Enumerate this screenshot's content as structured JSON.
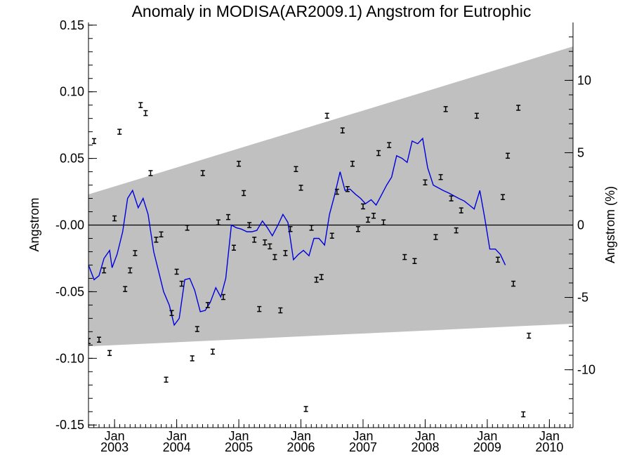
{
  "chart_data": {
    "type": "scatter",
    "title": "Anomaly in MODISA(AR2009.1) Angstrom for Eutrophic",
    "ylabel": "Angstrom",
    "y2label": "Angstrom (%)",
    "xlim": [
      2002.58,
      2010.38
    ],
    "ylim": [
      -0.152,
      0.152
    ],
    "y2lim": [
      -14.0,
      14.0
    ],
    "grid": false,
    "legend": "none",
    "colors": {
      "band": "#c0c0c0",
      "line": "#0000dd",
      "points": "#000000",
      "zero": "#000000"
    },
    "yticks": [
      {
        "value": 0.15,
        "label": "0.15"
      },
      {
        "value": 0.1,
        "label": "0.10"
      },
      {
        "value": 0.05,
        "label": "0.05"
      },
      {
        "value": 0.0,
        "label": "-0.00"
      },
      {
        "value": -0.05,
        "label": "-0.05"
      },
      {
        "value": -0.1,
        "label": "-0.10"
      },
      {
        "value": -0.15,
        "label": "-0.15"
      }
    ],
    "y2ticks": [
      {
        "value": 10,
        "label": "10"
      },
      {
        "value": 5,
        "label": "5"
      },
      {
        "value": 0,
        "label": "0"
      },
      {
        "value": -5,
        "label": "-5"
      },
      {
        "value": -10,
        "label": "-10"
      }
    ],
    "xticks": [
      {
        "value": 2003.0,
        "month": "Jan",
        "year": "2003"
      },
      {
        "value": 2004.0,
        "month": "Jan",
        "year": "2004"
      },
      {
        "value": 2005.0,
        "month": "Jan",
        "year": "2005"
      },
      {
        "value": 2006.0,
        "month": "Jan",
        "year": "2006"
      },
      {
        "value": 2007.0,
        "month": "Jan",
        "year": "2007"
      },
      {
        "value": 2008.0,
        "month": "Jan",
        "year": "2008"
      },
      {
        "value": 2009.0,
        "month": "Jan",
        "year": "2009"
      },
      {
        "value": 2010.0,
        "month": "Jan",
        "year": "2010"
      }
    ],
    "band": {
      "upper": [
        [
          2002.58,
          0.023
        ],
        [
          2010.38,
          0.134
        ]
      ],
      "lower": [
        [
          2002.58,
          -0.091
        ],
        [
          2010.38,
          -0.074
        ]
      ]
    },
    "points": [
      [
        2002.58,
        -0.087
      ],
      [
        2002.67,
        0.063
      ],
      [
        2002.75,
        -0.086
      ],
      [
        2002.83,
        -0.034
      ],
      [
        2002.92,
        -0.096
      ],
      [
        2003.0,
        0.005
      ],
      [
        2003.08,
        0.07
      ],
      [
        2003.17,
        -0.048
      ],
      [
        2003.25,
        -0.034
      ],
      [
        2003.33,
        -0.021
      ],
      [
        2003.42,
        0.09
      ],
      [
        2003.5,
        0.084
      ],
      [
        2003.58,
        0.039
      ],
      [
        2003.67,
        -0.011
      ],
      [
        2003.75,
        -0.007
      ],
      [
        2003.83,
        -0.116
      ],
      [
        2003.92,
        -0.066
      ],
      [
        2004.0,
        -0.035
      ],
      [
        2004.08,
        -0.044
      ],
      [
        2004.17,
        -0.002
      ],
      [
        2004.25,
        -0.1
      ],
      [
        2004.33,
        -0.078
      ],
      [
        2004.42,
        0.039
      ],
      [
        2004.5,
        -0.06
      ],
      [
        2004.58,
        -0.095
      ],
      [
        2004.67,
        0.002
      ],
      [
        2004.75,
        -0.054
      ],
      [
        2004.83,
        0.006
      ],
      [
        2004.92,
        -0.017
      ],
      [
        2005.0,
        0.046
      ],
      [
        2005.08,
        0.024
      ],
      [
        2005.17,
        0.0
      ],
      [
        2005.25,
        -0.011
      ],
      [
        2005.33,
        -0.063
      ],
      [
        2005.42,
        -0.013
      ],
      [
        2005.5,
        -0.016
      ],
      [
        2005.58,
        -0.024
      ],
      [
        2005.67,
        -0.064
      ],
      [
        2005.75,
        -0.021
      ],
      [
        2005.83,
        -0.003
      ],
      [
        2005.92,
        0.042
      ],
      [
        2006.0,
        0.028
      ],
      [
        2006.08,
        -0.138
      ],
      [
        2006.17,
        -0.002
      ],
      [
        2006.25,
        -0.041
      ],
      [
        2006.33,
        -0.039
      ],
      [
        2006.42,
        0.082
      ],
      [
        2006.5,
        -0.008
      ],
      [
        2006.58,
        0.025
      ],
      [
        2006.67,
        0.071
      ],
      [
        2006.75,
        0.027
      ],
      [
        2006.83,
        0.046
      ],
      [
        2006.92,
        -0.003
      ],
      [
        2007.0,
        0.014
      ],
      [
        2007.08,
        0.004
      ],
      [
        2007.17,
        0.007
      ],
      [
        2007.25,
        0.054
      ],
      [
        2007.33,
        0.002
      ],
      [
        2007.42,
        0.06
      ],
      [
        2007.67,
        -0.024
      ],
      [
        2007.83,
        -0.027
      ],
      [
        2008.0,
        0.032
      ],
      [
        2008.17,
        -0.009
      ],
      [
        2008.25,
        0.036
      ],
      [
        2008.33,
        0.087
      ],
      [
        2008.42,
        0.02
      ],
      [
        2008.5,
        -0.004
      ],
      [
        2008.58,
        0.011
      ],
      [
        2008.83,
        0.082
      ],
      [
        2009.17,
        -0.026
      ],
      [
        2009.25,
        0.021
      ],
      [
        2009.33,
        0.052
      ],
      [
        2009.42,
        -0.044
      ],
      [
        2009.5,
        0.088
      ],
      [
        2009.58,
        -0.142
      ],
      [
        2009.67,
        -0.083
      ]
    ],
    "line": [
      [
        2002.58,
        -0.03
      ],
      [
        2002.67,
        -0.041
      ],
      [
        2002.75,
        -0.038
      ],
      [
        2002.83,
        -0.025
      ],
      [
        2002.92,
        -0.019
      ],
      [
        2002.96,
        -0.032
      ],
      [
        2003.04,
        -0.022
      ],
      [
        2003.13,
        -0.005
      ],
      [
        2003.21,
        0.02
      ],
      [
        2003.29,
        0.026
      ],
      [
        2003.38,
        0.013
      ],
      [
        2003.46,
        0.02
      ],
      [
        2003.54,
        0.008
      ],
      [
        2003.63,
        -0.02
      ],
      [
        2003.71,
        -0.035
      ],
      [
        2003.79,
        -0.05
      ],
      [
        2003.88,
        -0.06
      ],
      [
        2003.96,
        -0.075
      ],
      [
        2004.04,
        -0.07
      ],
      [
        2004.13,
        -0.041
      ],
      [
        2004.21,
        -0.04
      ],
      [
        2004.29,
        -0.049
      ],
      [
        2004.38,
        -0.065
      ],
      [
        2004.46,
        -0.064
      ],
      [
        2004.54,
        -0.058
      ],
      [
        2004.63,
        -0.047
      ],
      [
        2004.71,
        -0.054
      ],
      [
        2004.79,
        -0.04
      ],
      [
        2004.88,
        0.0
      ],
      [
        2004.96,
        -0.002
      ],
      [
        2005.04,
        -0.003
      ],
      [
        2005.13,
        -0.005
      ],
      [
        2005.21,
        -0.005
      ],
      [
        2005.29,
        -0.004
      ],
      [
        2005.38,
        0.003
      ],
      [
        2005.46,
        -0.002
      ],
      [
        2005.54,
        -0.008
      ],
      [
        2005.63,
        0.0
      ],
      [
        2005.71,
        0.008
      ],
      [
        2005.79,
        0.002
      ],
      [
        2005.88,
        -0.026
      ],
      [
        2005.96,
        -0.022
      ],
      [
        2006.04,
        -0.019
      ],
      [
        2006.13,
        -0.023
      ],
      [
        2006.21,
        -0.01
      ],
      [
        2006.29,
        -0.01
      ],
      [
        2006.38,
        -0.015
      ],
      [
        2006.46,
        0.008
      ],
      [
        2006.54,
        0.022
      ],
      [
        2006.63,
        0.04
      ],
      [
        2006.71,
        0.026
      ],
      [
        2006.79,
        0.027
      ],
      [
        2006.88,
        0.023
      ],
      [
        2006.96,
        0.02
      ],
      [
        2007.04,
        0.016
      ],
      [
        2007.13,
        0.019
      ],
      [
        2007.21,
        0.015
      ],
      [
        2007.29,
        0.022
      ],
      [
        2007.38,
        0.03
      ],
      [
        2007.46,
        0.036
      ],
      [
        2007.54,
        0.052
      ],
      [
        2007.63,
        0.05
      ],
      [
        2007.71,
        0.047
      ],
      [
        2007.79,
        0.063
      ],
      [
        2007.88,
        0.061
      ],
      [
        2007.96,
        0.065
      ],
      [
        2008.04,
        0.043
      ],
      [
        2008.13,
        0.03
      ],
      [
        2008.21,
        0.028
      ],
      [
        2008.29,
        0.026
      ],
      [
        2008.38,
        0.024
      ],
      [
        2008.46,
        0.022
      ],
      [
        2008.54,
        0.02
      ],
      [
        2008.63,
        0.018
      ],
      [
        2008.71,
        0.015
      ],
      [
        2008.79,
        0.012
      ],
      [
        2008.88,
        0.026
      ],
      [
        2008.96,
        0.005
      ],
      [
        2009.04,
        -0.018
      ],
      [
        2009.13,
        -0.018
      ],
      [
        2009.21,
        -0.022
      ],
      [
        2009.29,
        -0.03
      ]
    ]
  }
}
